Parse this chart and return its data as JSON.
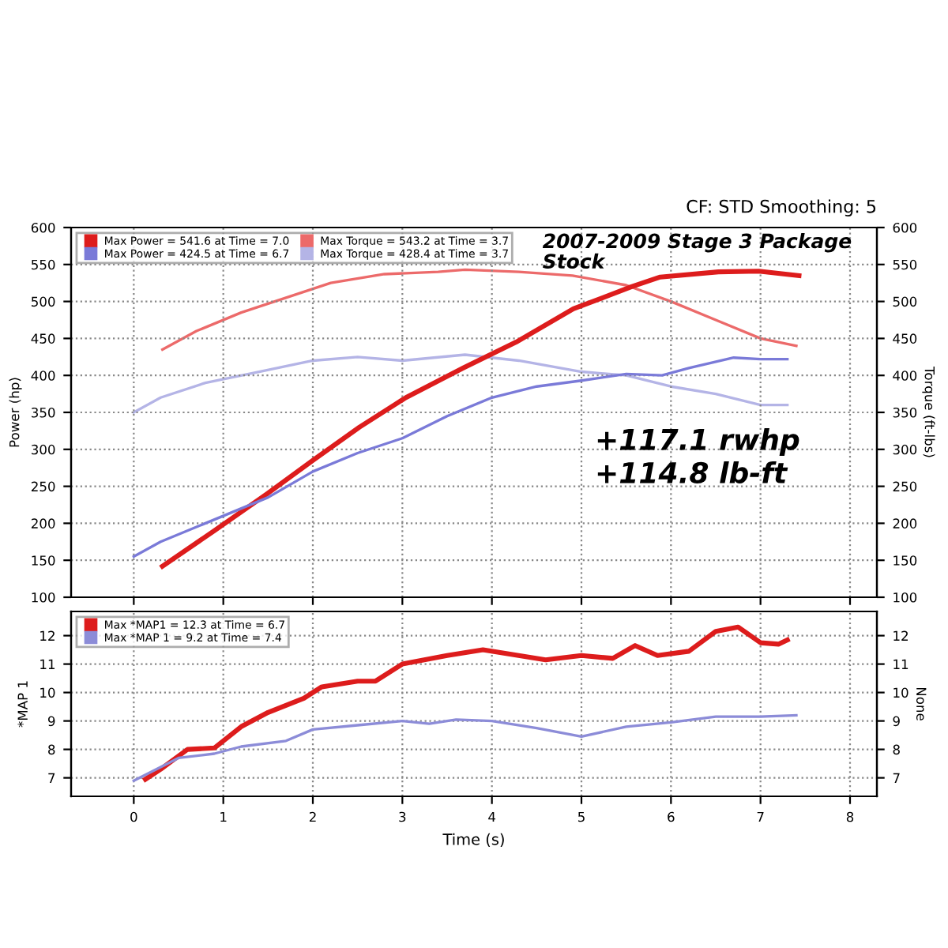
{
  "chart_data": [
    {
      "type": "line",
      "title": "2007-2009 Stage 3 Package",
      "subtitle": "Stock",
      "ylabel": "Power (hp)",
      "y2label": "Torque (ft-lbs)",
      "annotations": [
        "CF: STD Smoothing: 5",
        "+117.1 rwhp",
        "+114.8 lb-ft"
      ],
      "xlim": [
        -0.7,
        8.3
      ],
      "ylim": [
        100,
        600
      ],
      "yticks": [
        100,
        150,
        200,
        250,
        300,
        350,
        400,
        450,
        500,
        550,
        600
      ],
      "y2lim": [
        100,
        600
      ],
      "y2ticks": [
        100,
        150,
        200,
        250,
        300,
        350,
        400,
        450,
        500,
        550,
        600
      ],
      "xticks": [
        0,
        1,
        2,
        3,
        4,
        5,
        6,
        7,
        8
      ],
      "tick_labels": "y",
      "grid": true,
      "legend": "top left",
      "line_style": "solid",
      "marker": "none",
      "series": [
        {
          "name": "Max Power = 541.6 at Time = 7.0",
          "color": "#dd1c1c",
          "x": [
            0.32,
            0.9,
            1.49,
            2.0,
            2.52,
            3.04,
            3.68,
            4.27,
            4.91,
            5.56,
            5.88,
            6.53,
            6.98,
            7.43
          ],
          "values": [
            142,
            190,
            240,
            285,
            330,
            370,
            410,
            445,
            490,
            520,
            533,
            540,
            541,
            535
          ]
        },
        {
          "name": "Max Power = 424.5 at Time = 6.7",
          "color": "#7a7ad8",
          "x": [
            0.0,
            0.3,
            0.8,
            1.5,
            2.0,
            2.5,
            3.0,
            3.5,
            4.0,
            4.5,
            5.0,
            5.5,
            5.9,
            6.2,
            6.7,
            7.0,
            7.3
          ],
          "values": [
            155,
            175,
            200,
            235,
            270,
            295,
            315,
            345,
            370,
            385,
            393,
            402,
            400,
            410,
            424,
            422,
            422
          ]
        },
        {
          "name": "Max Torque = 543.2 at Time = 3.7",
          "color": "#ec6a6a",
          "axis": "y2",
          "x": [
            0.32,
            0.7,
            1.2,
            1.7,
            2.2,
            2.8,
            3.4,
            3.7,
            4.3,
            4.9,
            5.5,
            6.0,
            6.5,
            7.0,
            7.4
          ],
          "values": [
            435,
            460,
            485,
            505,
            525,
            537,
            540,
            543,
            540,
            535,
            522,
            500,
            475,
            450,
            440
          ]
        },
        {
          "name": "Max Torque = 428.4 at Time = 3.7",
          "color": "#b4b4e6",
          "axis": "y2",
          "x": [
            0.0,
            0.3,
            0.8,
            1.4,
            2.0,
            2.5,
            3.0,
            3.7,
            4.3,
            5.0,
            5.5,
            6.0,
            6.5,
            7.0,
            7.3
          ],
          "values": [
            350,
            370,
            390,
            405,
            420,
            425,
            420,
            428,
            420,
            405,
            400,
            385,
            375,
            360,
            360
          ]
        }
      ]
    },
    {
      "type": "line",
      "xlabel": "Time (s)",
      "ylabel": "*MAP 1",
      "y2label": "None",
      "xlim": [
        -0.7,
        8.3
      ],
      "xticks": [
        0,
        1,
        2,
        3,
        4,
        5,
        6,
        7,
        8
      ],
      "ylim": [
        6.35,
        12.85
      ],
      "yticks": [
        7,
        8,
        9,
        10,
        11,
        12
      ],
      "y2lim": [
        6.35,
        12.85
      ],
      "y2ticks": [
        7,
        8,
        9,
        10,
        11,
        12
      ],
      "grid": true,
      "legend": "top left",
      "line_style": "solid",
      "marker": "none",
      "series": [
        {
          "name": "Max *MAP1 = 12.3 at Time = 6.7",
          "color": "#dd1c1c",
          "x": [
            0.13,
            0.3,
            0.6,
            0.9,
            1.2,
            1.5,
            1.9,
            2.1,
            2.5,
            2.7,
            3.0,
            3.5,
            3.9,
            4.6,
            5.0,
            5.35,
            5.6,
            5.85,
            6.2,
            6.5,
            6.75,
            7.0,
            7.2,
            7.3
          ],
          "values": [
            6.95,
            7.3,
            8.0,
            8.05,
            8.8,
            9.3,
            9.8,
            10.2,
            10.4,
            10.4,
            11.0,
            11.3,
            11.5,
            11.15,
            11.3,
            11.2,
            11.65,
            11.3,
            11.45,
            12.15,
            12.3,
            11.75,
            11.7,
            11.85
          ]
        },
        {
          "name": "Max *MAP 1 = 9.2 at Time = 7.4",
          "color": "#8c8cd8",
          "x": [
            0.0,
            0.5,
            0.9,
            1.2,
            1.7,
            2.0,
            2.5,
            3.0,
            3.3,
            3.6,
            4.0,
            4.5,
            5.0,
            5.5,
            6.0,
            6.5,
            7.0,
            7.4
          ],
          "values": [
            6.9,
            7.7,
            7.85,
            8.1,
            8.3,
            8.7,
            8.85,
            9.0,
            8.9,
            9.05,
            9.0,
            8.75,
            8.45,
            8.8,
            8.95,
            9.15,
            9.15,
            9.2
          ]
        }
      ]
    }
  ]
}
